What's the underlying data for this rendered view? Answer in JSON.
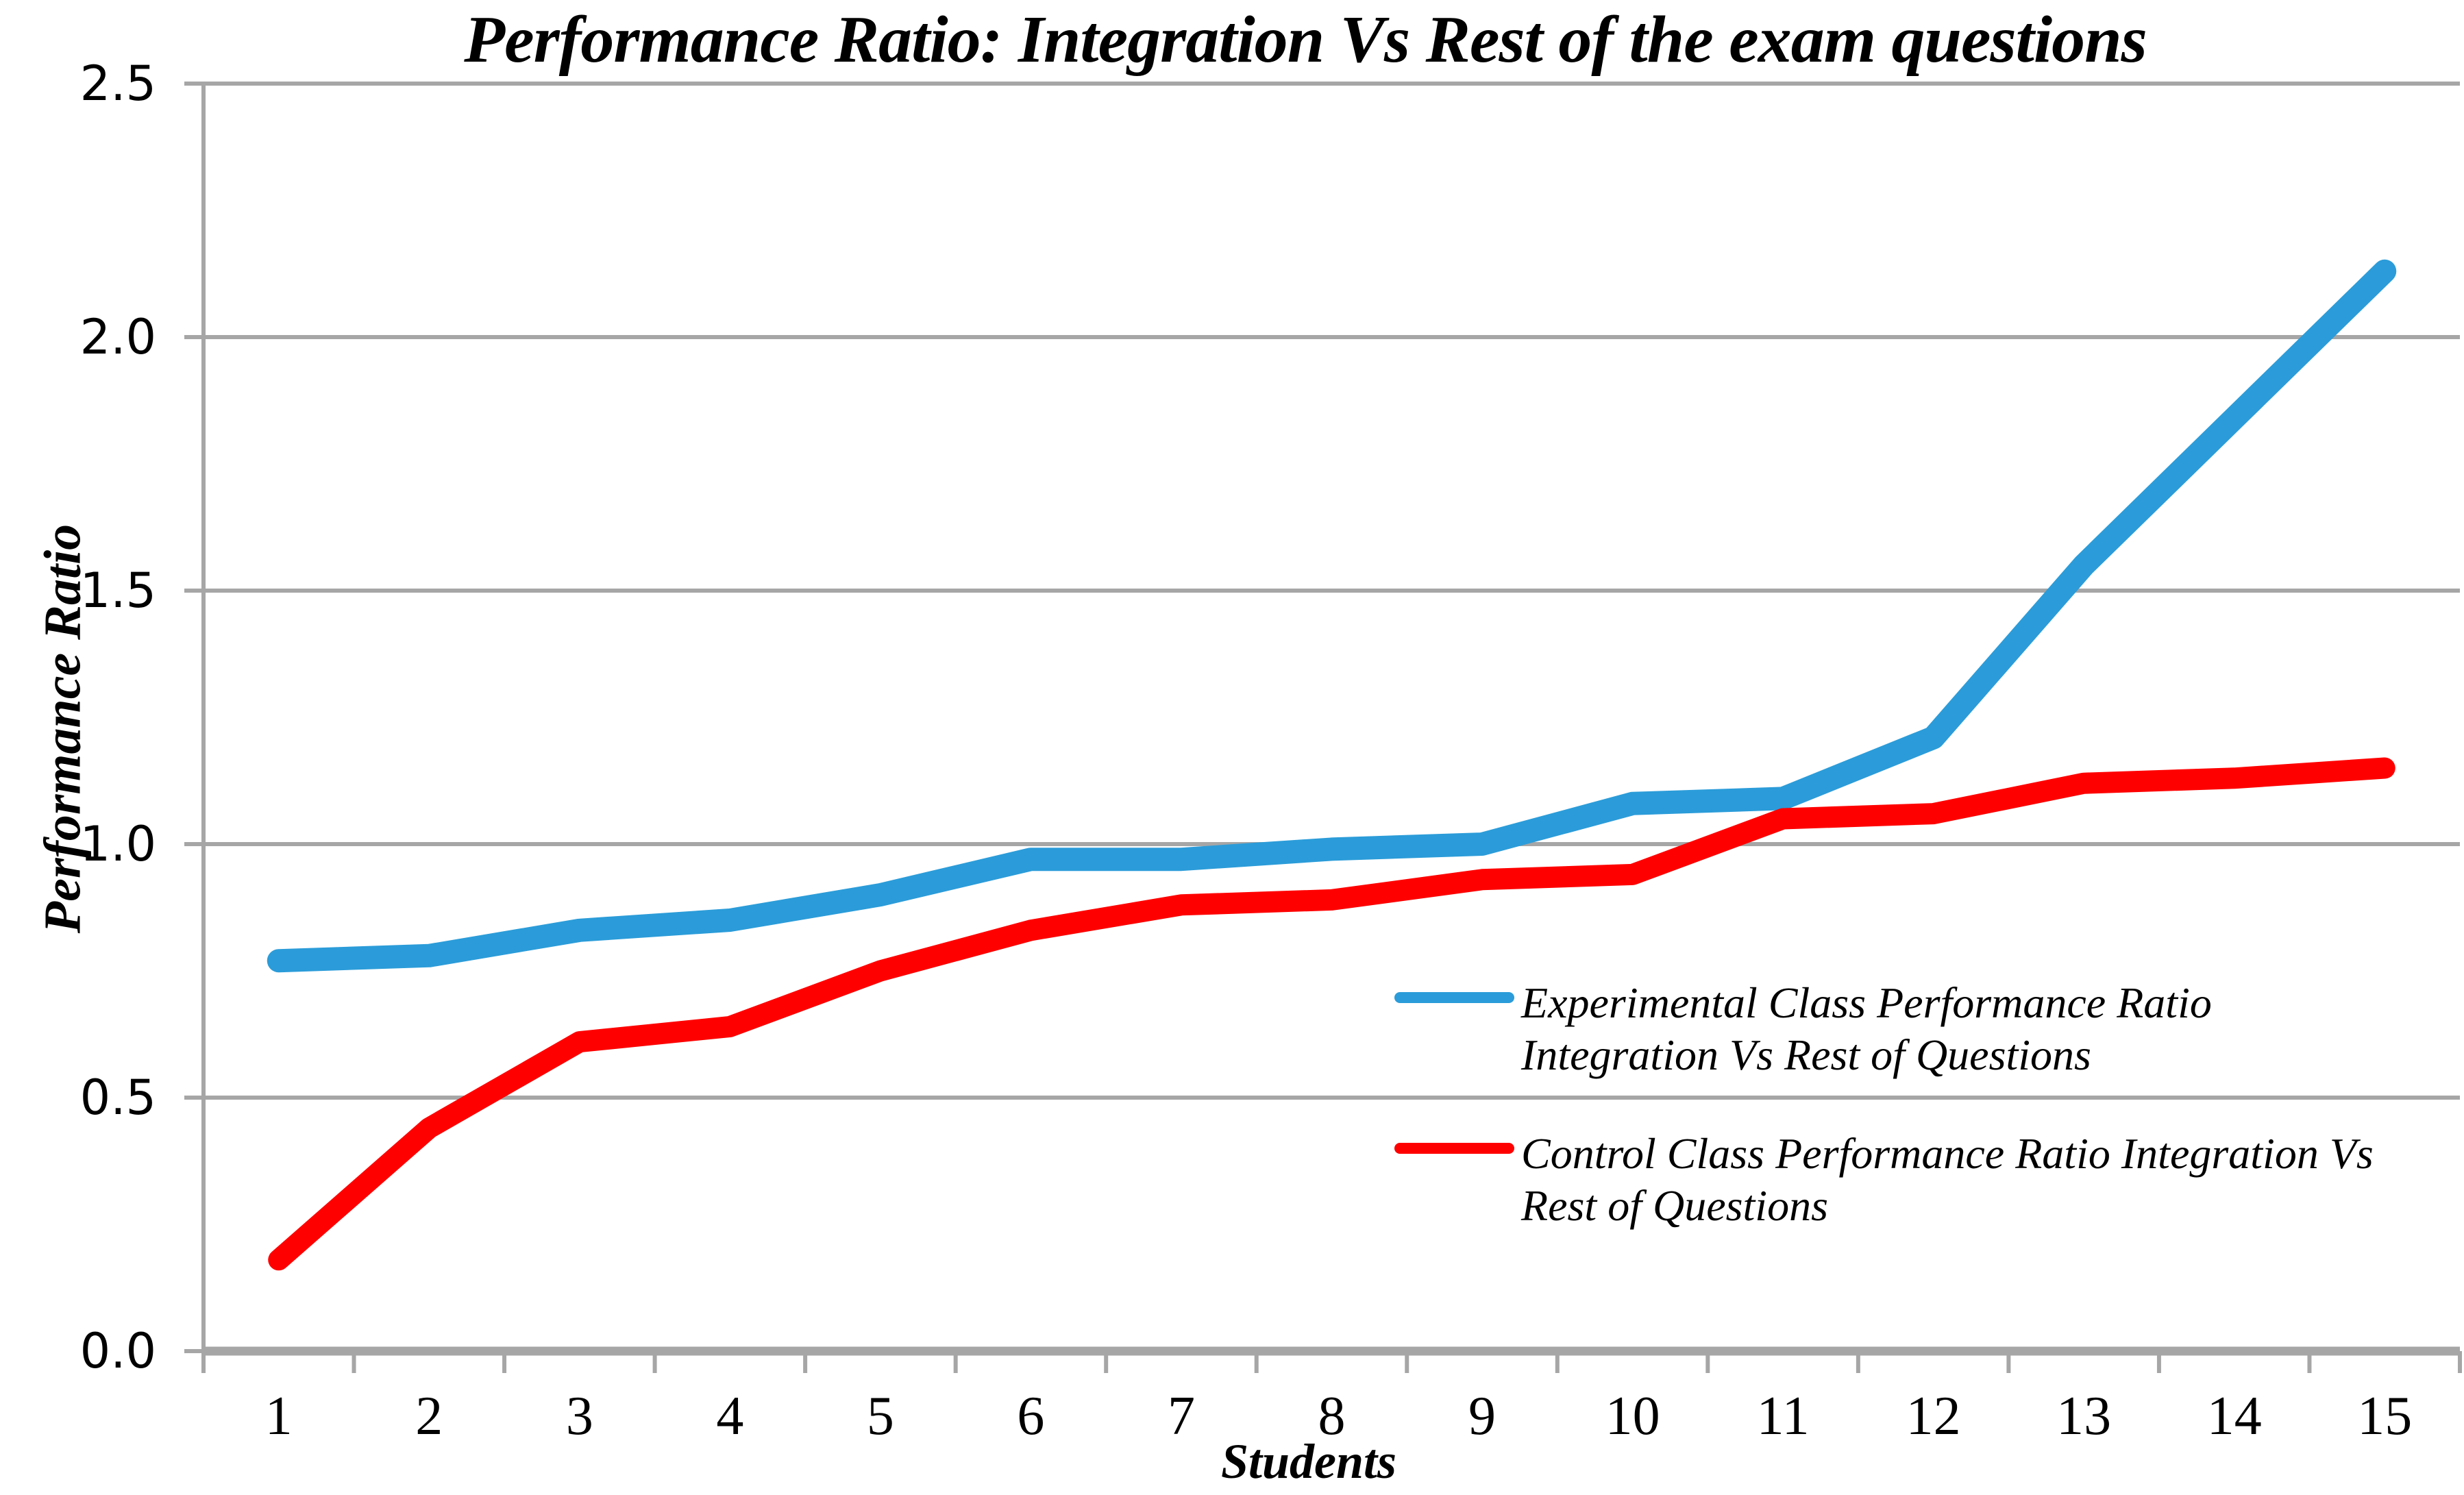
{
  "title": "Performance Ratio: Integration Vs Rest of the exam questions",
  "x_axis": {
    "title": "Students"
  },
  "y_axis": {
    "title": "Performance Ratio"
  },
  "colors": {
    "experimental": "#2B9CD9",
    "control": "#FF0000",
    "gridline": "#A6A6A6",
    "axis": "#A6A6A6",
    "text": "#000000"
  },
  "legend": {
    "entries": [
      {
        "id": "experimental",
        "color": "#2B9CD9",
        "lines": [
          "Experimental Class Performance Ratio",
          "Integration Vs Rest of Questions"
        ]
      },
      {
        "id": "control",
        "color": "#FF0000",
        "lines": [
          "Control Class Performance Ratio Integration Vs",
          "Rest of Questions"
        ]
      }
    ]
  },
  "chart_data": {
    "type": "line",
    "title": "Performance Ratio: Integration Vs Rest of the exam questions",
    "xlabel": "Students",
    "ylabel": "Performance Ratio",
    "x": [
      1,
      2,
      3,
      4,
      5,
      6,
      7,
      8,
      9,
      10,
      11,
      12,
      13,
      14,
      15
    ],
    "series": [
      {
        "name": "Experimental Class Performance Ratio Integration Vs Rest of Questions",
        "color": "#2B9CD9",
        "values": [
          0.77,
          0.78,
          0.83,
          0.85,
          0.9,
          0.97,
          0.97,
          0.99,
          1.0,
          1.08,
          1.09,
          1.21,
          1.55,
          1.84,
          2.13
        ]
      },
      {
        "name": "Control Class Performance Ratio Integration Vs Rest of Questions",
        "color": "#FF0000",
        "values": [
          0.18,
          0.44,
          0.61,
          0.64,
          0.75,
          0.83,
          0.88,
          0.89,
          0.93,
          0.94,
          1.05,
          1.06,
          1.12,
          1.13,
          1.15
        ]
      }
    ],
    "ylim": [
      0.0,
      2.5
    ],
    "ytick_step": 0.5,
    "grid": "horizontal",
    "legend_position": "inside-right"
  }
}
